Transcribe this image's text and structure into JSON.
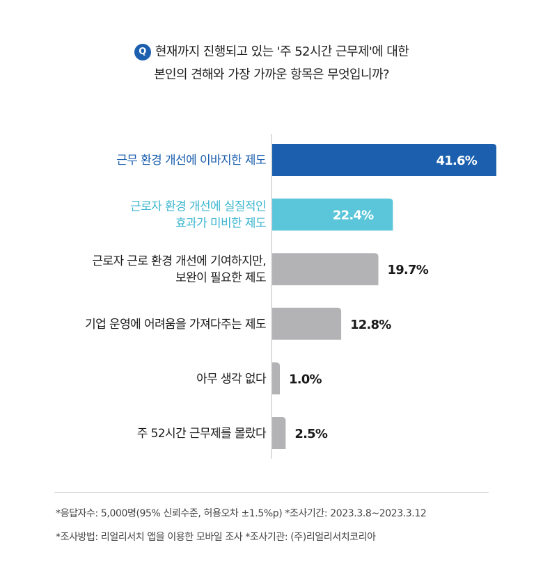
{
  "question": {
    "badge": "Q",
    "line1": "현재까지 진행되고 있는 '주 52시간 근무제'에 대한",
    "line2": "본인의 견해와 가장 가까운 항목은 무엇입니까?"
  },
  "chart_data": {
    "type": "bar",
    "orientation": "horizontal",
    "categories": [
      [
        "근무 환경 개선에 이바지한 제도"
      ],
      [
        "근로자 환경 개선에 실질적인",
        "효과가 미비한 제도"
      ],
      [
        "근로자 근로 환경 개선에 기여하지만,",
        "보완이 필요한 제도"
      ],
      [
        "기업 운영에 어려움을 가져다주는 제도"
      ],
      [
        "아무 생각 없다"
      ],
      [
        "주 52시간 근무제를 몰랐다"
      ]
    ],
    "values": [
      41.6,
      22.4,
      19.7,
      12.8,
      1.0,
      2.5
    ],
    "value_labels": [
      "41.6%",
      "22.4%",
      "19.7%",
      "12.8%",
      "1.0%",
      "2.5%"
    ],
    "xlim": [
      0,
      41.6
    ],
    "grid": false,
    "colors": [
      "#1b5fae",
      "#5bc6d9",
      "#b3b3b5",
      "#b3b3b5",
      "#b3b3b5",
      "#b3b3b5"
    ],
    "label_colors": [
      "#1b5fae",
      "#3bb6cf",
      "#1a1a1a",
      "#1a1a1a",
      "#1a1a1a",
      "#1a1a1a"
    ],
    "value_inside": [
      true,
      true,
      false,
      false,
      false,
      false
    ]
  },
  "notes": {
    "line1": "*응답자수: 5,000명(95% 신뢰수준, 허용오차 ±1.5%p)  *조사기간: 2023.3.8~2023.3.12",
    "line2": "*조사방법: 리얼리서치 앱을 이용한 모바일 조사  *조사기관: (주)리얼리서치코리아"
  }
}
